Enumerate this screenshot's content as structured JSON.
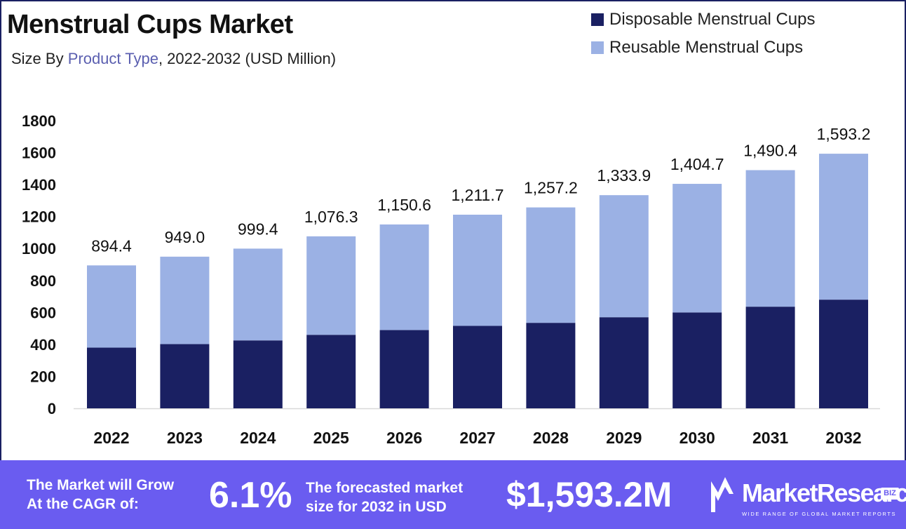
{
  "header": {
    "title": "Menstrual Cups Market",
    "subtitle_prefix": "Size By ",
    "subtitle_highlight": "Product Type",
    "subtitle_suffix": ", 2022-2032 (USD Million)"
  },
  "legend": [
    {
      "label": "Disposable Menstrual Cups",
      "color": "#1a2062"
    },
    {
      "label": "Reusable Menstrual Cups",
      "color": "#9bb1e4"
    }
  ],
  "chart_data": {
    "type": "bar",
    "stacked": true,
    "title": "Menstrual Cups Market",
    "subtitle": "Size By Product Type, 2022-2032 (USD Million)",
    "categories": [
      "2022",
      "2023",
      "2024",
      "2025",
      "2026",
      "2027",
      "2028",
      "2029",
      "2030",
      "2031",
      "2032"
    ],
    "series": [
      {
        "name": "Disposable Menstrual Cups",
        "color": "#1a2062",
        "values": [
          380,
          402,
          425,
          460,
          490,
          516,
          535,
          570,
          600,
          636,
          680
        ]
      },
      {
        "name": "Reusable Menstrual Cups",
        "color": "#9bb1e4",
        "values": [
          514.4,
          547.0,
          574.4,
          616.3,
          660.6,
          695.7,
          722.2,
          763.9,
          804.7,
          854.4,
          913.2
        ]
      }
    ],
    "totals": [
      "894.4",
      "949.0",
      "999.4",
      "1,076.3",
      "1,150.6",
      "1,211.7",
      "1,257.2",
      "1,333.9",
      "1,404.7",
      "1,490.4",
      "1,593.2"
    ],
    "yticks": [
      0,
      200,
      400,
      600,
      800,
      1000,
      1200,
      1400,
      1600,
      1800
    ],
    "ylim": [
      0,
      1800
    ],
    "xlabel": "",
    "ylabel": "",
    "grid": false,
    "legend_position": "top-right"
  },
  "banner": {
    "cagr_text_line1": "The Market will Grow",
    "cagr_text_line2": "At the CAGR of:",
    "cagr_value": "6.1%",
    "forecast_text_line1": "The forecasted market",
    "forecast_text_line2": "size for 2032 in USD",
    "forecast_value": "$1,593.2M",
    "background_color": "#6a5cf0"
  },
  "brand": {
    "name": "MarketResearch",
    "badge": "BIZ",
    "tagline": "WIDE RANGE OF GLOBAL MARKET REPORTS",
    "icon": "market-research-logo-icon"
  }
}
